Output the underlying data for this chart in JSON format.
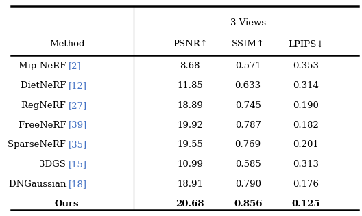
{
  "title": "3 Views",
  "col_headers": [
    "PSNR↑",
    "SSIM↑",
    "LPIPS↓"
  ],
  "row_labels_plain": [
    "Mip-NeRF ",
    "DietNeRF ",
    "RegNeRF ",
    "FreeNeRF ",
    "SparseNeRF ",
    "3DGS ",
    "DNGaussian ",
    "Ours"
  ],
  "row_labels_refs": [
    "[2]",
    "[12]",
    "[27]",
    "[39]",
    "[35]",
    "[15]",
    "[18]",
    ""
  ],
  "data": [
    [
      8.68,
      0.571,
      0.353
    ],
    [
      11.85,
      0.633,
      0.314
    ],
    [
      18.89,
      0.745,
      0.19
    ],
    [
      19.92,
      0.787,
      0.182
    ],
    [
      19.55,
      0.769,
      0.201
    ],
    [
      10.99,
      0.585,
      0.313
    ],
    [
      18.91,
      0.79,
      0.176
    ],
    [
      20.68,
      0.856,
      0.125
    ]
  ],
  "bold_row": 7,
  "method_col_header": "Method",
  "text_color": "#000000",
  "ref_color": "#4472C4",
  "bg_color": "#ffffff",
  "font_size": 9.5,
  "header_font_size": 9.5,
  "fig_width": 5.28,
  "fig_height": 3.16,
  "dpi": 100
}
